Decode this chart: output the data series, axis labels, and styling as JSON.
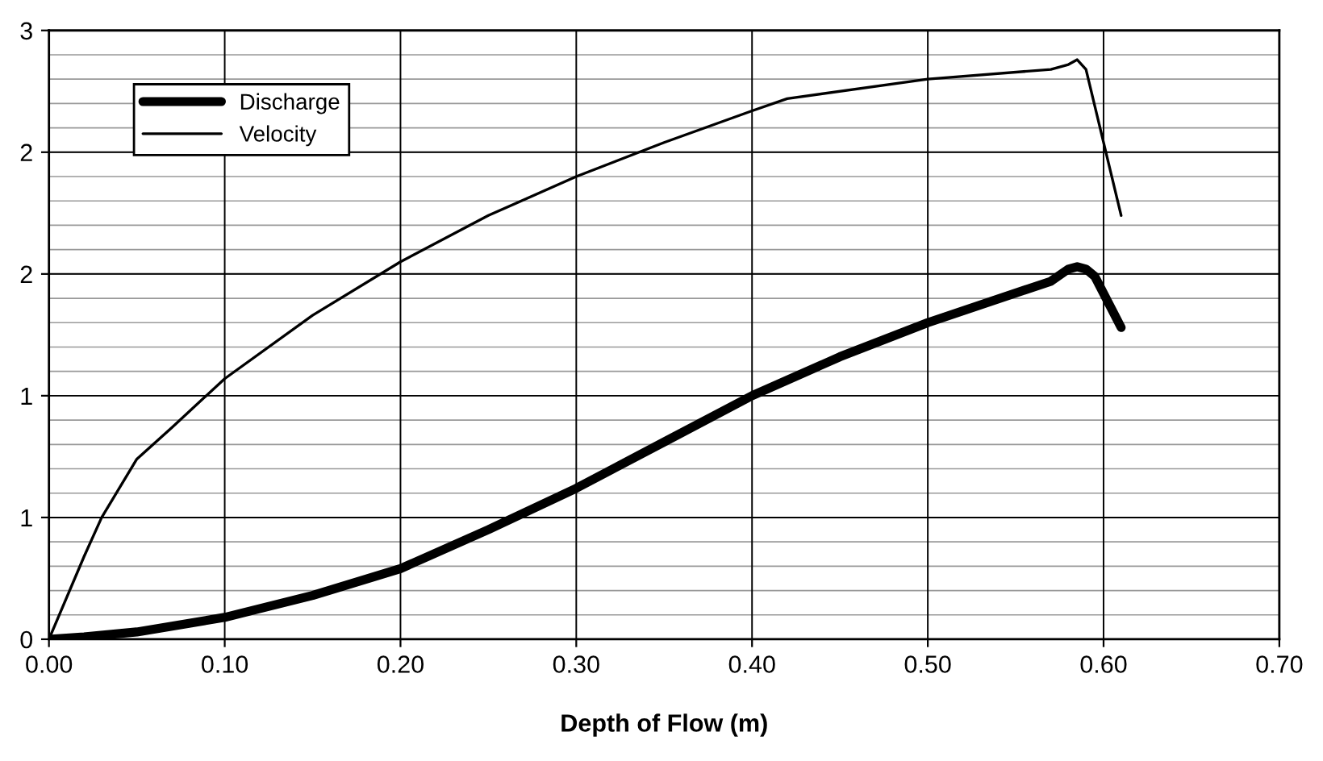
{
  "chart_data": {
    "type": "line",
    "xlabel": "Depth of Flow (m)",
    "legend": "top left",
    "grid": true,
    "xlim": [
      0,
      0.7
    ],
    "xticks": [
      {
        "value": 0,
        "label": "0.00"
      },
      {
        "value": 0.1,
        "label": "0.10"
      },
      {
        "value": 0.2,
        "label": "0.20"
      },
      {
        "value": 0.3,
        "label": "0.30"
      },
      {
        "value": 0.4,
        "label": "0.40"
      },
      {
        "value": 0.5,
        "label": "0.50"
      },
      {
        "value": 0.6,
        "label": "0.60"
      },
      {
        "value": 0.7,
        "label": "0.70"
      }
    ],
    "ylim": [
      0,
      2.5
    ],
    "yticks": [
      0,
      {
        "value": 0.5,
        "label": "1"
      },
      1,
      {
        "value": 1.5,
        "label": "2"
      },
      2,
      {
        "value": 2.5,
        "label": "3"
      }
    ],
    "series": [
      {
        "name": "Discharge",
        "color": "#000000",
        "x": [
          0,
          0.02,
          0.05,
          0.1,
          0.15,
          0.2,
          0.25,
          0.3,
          0.35,
          0.4,
          0.45,
          0.5,
          0.57,
          0.58,
          0.585,
          0.59,
          0.595,
          0.61
        ],
        "values": [
          0,
          0.01,
          0.03,
          0.09,
          0.18,
          0.29,
          0.45,
          0.62,
          0.81,
          1.0,
          1.16,
          1.3,
          1.47,
          1.52,
          1.53,
          1.52,
          1.49,
          1.28
        ]
      },
      {
        "name": "Velocity",
        "color": "#000000",
        "x": [
          0,
          0.02,
          0.03,
          0.05,
          0.07,
          0.1,
          0.15,
          0.2,
          0.25,
          0.3,
          0.35,
          0.4,
          0.42,
          0.5,
          0.57,
          0.58,
          0.585,
          0.59,
          0.61
        ],
        "values": [
          0,
          0.34,
          0.5,
          0.74,
          0.87,
          1.07,
          1.33,
          1.55,
          1.74,
          1.9,
          2.04,
          2.17,
          2.22,
          2.3,
          2.34,
          2.36,
          2.38,
          2.34,
          1.74
        ]
      }
    ]
  }
}
